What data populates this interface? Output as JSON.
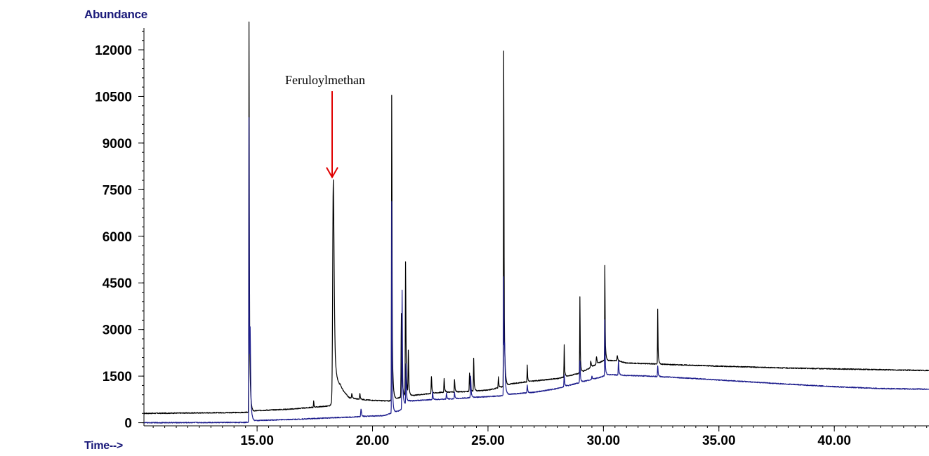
{
  "chart_data": {
    "type": "line",
    "ylabel": "Abundance",
    "xlabel": "Time-->",
    "xlim": [
      10.1,
      44.1
    ],
    "ylim": [
      -100,
      12700
    ],
    "x_ticks": [
      15,
      20,
      25,
      30,
      35,
      40
    ],
    "x_tick_labels": [
      "15.00",
      "20.00",
      "25.00",
      "30.00",
      "35.00",
      "40.00"
    ],
    "y_ticks": [
      0,
      1500,
      3000,
      4500,
      6000,
      7500,
      9000,
      10500,
      12000
    ],
    "y_tick_labels": [
      "0",
      "1500",
      "3000",
      "4500",
      "6000",
      "7500",
      "9000",
      "10500",
      "12000"
    ],
    "annotation": {
      "text": "Feruloylmethan",
      "x": 18.25,
      "y": 7900,
      "color": "#e00000"
    },
    "series": [
      {
        "color": "#000000",
        "baseline": [
          [
            10.1,
            300
          ],
          [
            14.5,
            330
          ],
          [
            15.0,
            390
          ],
          [
            16.5,
            440
          ],
          [
            17.8,
            520
          ],
          [
            18.15,
            540
          ],
          [
            18.6,
            1100
          ],
          [
            19.0,
            800
          ],
          [
            19.5,
            750
          ],
          [
            20.0,
            720
          ],
          [
            20.7,
            700
          ],
          [
            21.2,
            820
          ],
          [
            22.0,
            900
          ],
          [
            23.0,
            980
          ],
          [
            24.0,
            1000
          ],
          [
            25.0,
            1050
          ],
          [
            25.6,
            1150
          ],
          [
            26.0,
            1250
          ],
          [
            26.8,
            1330
          ],
          [
            28.0,
            1420
          ],
          [
            29.0,
            1600
          ],
          [
            29.5,
            1800
          ],
          [
            30.0,
            2000
          ],
          [
            30.6,
            2000
          ],
          [
            31.0,
            1920
          ],
          [
            32.0,
            1900
          ],
          [
            33.0,
            1870
          ],
          [
            35.0,
            1820
          ],
          [
            38.0,
            1760
          ],
          [
            41.0,
            1720
          ],
          [
            44.1,
            1680
          ]
        ],
        "peaks": [
          [
            14.65,
            12550,
            0.035
          ],
          [
            18.3,
            7100,
            0.1
          ],
          [
            20.83,
            9800,
            0.035
          ],
          [
            21.25,
            2700,
            0.05
          ],
          [
            21.43,
            4300,
            0.04
          ],
          [
            21.55,
            1400,
            0.04
          ],
          [
            22.55,
            550,
            0.04
          ],
          [
            23.1,
            450,
            0.04
          ],
          [
            23.55,
            400,
            0.04
          ],
          [
            24.2,
            600,
            0.04
          ],
          [
            24.38,
            1050,
            0.035
          ],
          [
            25.45,
            350,
            0.04
          ],
          [
            25.68,
            10800,
            0.035
          ],
          [
            26.7,
            550,
            0.03
          ],
          [
            28.3,
            1050,
            0.03
          ],
          [
            28.98,
            2450,
            0.03
          ],
          [
            29.45,
            200,
            0.05
          ],
          [
            29.7,
            250,
            0.05
          ],
          [
            30.06,
            3050,
            0.03
          ],
          [
            30.6,
            150,
            0.05
          ],
          [
            32.35,
            1760,
            0.03
          ],
          [
            17.45,
            200,
            0.03
          ],
          [
            19.1,
            150,
            0.04
          ],
          [
            19.45,
            200,
            0.04
          ]
        ]
      },
      {
        "color": "#1c1c8c",
        "baseline": [
          [
            10.1,
            0
          ],
          [
            14.5,
            10
          ],
          [
            15.0,
            70
          ],
          [
            17.0,
            120
          ],
          [
            19.0,
            180
          ],
          [
            20.5,
            230
          ],
          [
            21.2,
            400
          ],
          [
            21.6,
            700
          ],
          [
            22.5,
            740
          ],
          [
            23.5,
            770
          ],
          [
            24.5,
            820
          ],
          [
            25.5,
            860
          ],
          [
            26.0,
            920
          ],
          [
            27.0,
            980
          ],
          [
            28.0,
            1100
          ],
          [
            29.0,
            1300
          ],
          [
            29.8,
            1450
          ],
          [
            30.2,
            1550
          ],
          [
            31.0,
            1520
          ],
          [
            32.0,
            1500
          ],
          [
            34.0,
            1420
          ],
          [
            36.0,
            1330
          ],
          [
            38.0,
            1240
          ],
          [
            40.0,
            1160
          ],
          [
            42.0,
            1100
          ],
          [
            44.1,
            1080
          ]
        ],
        "peaks": [
          [
            14.65,
            9800,
            0.03
          ],
          [
            14.7,
            2300,
            0.05
          ],
          [
            19.5,
            250,
            0.05
          ],
          [
            20.83,
            6800,
            0.03
          ],
          [
            21.28,
            3800,
            0.04
          ],
          [
            21.45,
            1300,
            0.04
          ],
          [
            22.6,
            250,
            0.04
          ],
          [
            23.2,
            200,
            0.04
          ],
          [
            23.55,
            200,
            0.04
          ],
          [
            24.25,
            700,
            0.04
          ],
          [
            25.68,
            3800,
            0.035
          ],
          [
            25.72,
            1200,
            0.05
          ],
          [
            26.7,
            250,
            0.04
          ],
          [
            28.3,
            400,
            0.04
          ],
          [
            28.98,
            700,
            0.04
          ],
          [
            29.5,
            100,
            0.05
          ],
          [
            30.06,
            1800,
            0.03
          ],
          [
            30.65,
            450,
            0.04
          ],
          [
            32.35,
            350,
            0.04
          ]
        ]
      }
    ]
  }
}
